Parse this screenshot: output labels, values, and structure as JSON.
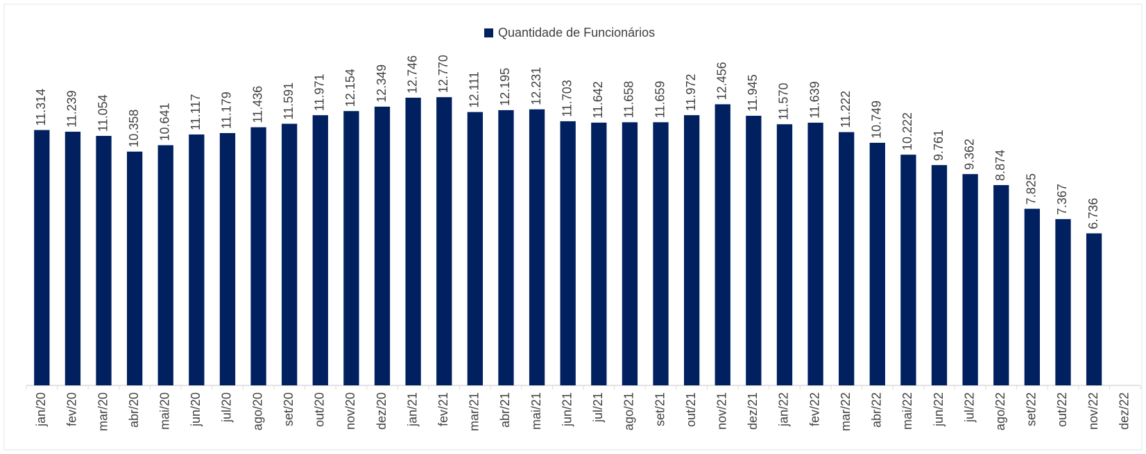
{
  "chart_data": {
    "type": "bar",
    "categories": [
      "jan/20",
      "fev/20",
      "mar/20",
      "abr/20",
      "mai/20",
      "jun/20",
      "jul/20",
      "ago/20",
      "set/20",
      "out/20",
      "nov/20",
      "dez/20",
      "jan/21",
      "fev/21",
      "mar/21",
      "abr/21",
      "mai/21",
      "jun/21",
      "jul/21",
      "ago/21",
      "set/21",
      "out/21",
      "nov/21",
      "dez/21",
      "jan/22",
      "fev/22",
      "mar/22",
      "abr/22",
      "mai/22",
      "jun/22",
      "jul/22",
      "ago/22",
      "set/22",
      "out/22",
      "nov/22",
      "dez/22"
    ],
    "series": [
      {
        "name": "Quantidade de Funcionários",
        "color": "#002060",
        "values": [
          11314,
          11239,
          11054,
          10358,
          10641,
          11117,
          11179,
          11436,
          11591,
          11971,
          12154,
          12349,
          12746,
          12770,
          12111,
          12195,
          12231,
          11703,
          11642,
          11658,
          11659,
          11972,
          12456,
          11945,
          11570,
          11639,
          11222,
          10749,
          10222,
          9761,
          9362,
          8874,
          7825,
          7367,
          6736,
          null
        ],
        "value_labels": [
          "11.314",
          "11.239",
          "11.054",
          "10.358",
          "10.641",
          "11.117",
          "11.179",
          "11.436",
          "11.591",
          "11.971",
          "12.154",
          "12.349",
          "12.746",
          "12.770",
          "12.111",
          "12.195",
          "12.231",
          "11.703",
          "11.642",
          "11.658",
          "11.659",
          "11.972",
          "12.456",
          "11.945",
          "11.570",
          "11.639",
          "11.222",
          "10.749",
          "10.222",
          "9.761",
          "9.362",
          "8.874",
          "7.825",
          "7.367",
          "6.736",
          null
        ]
      }
    ],
    "ylim": [
      0,
      16000
    ],
    "legend": "top"
  }
}
